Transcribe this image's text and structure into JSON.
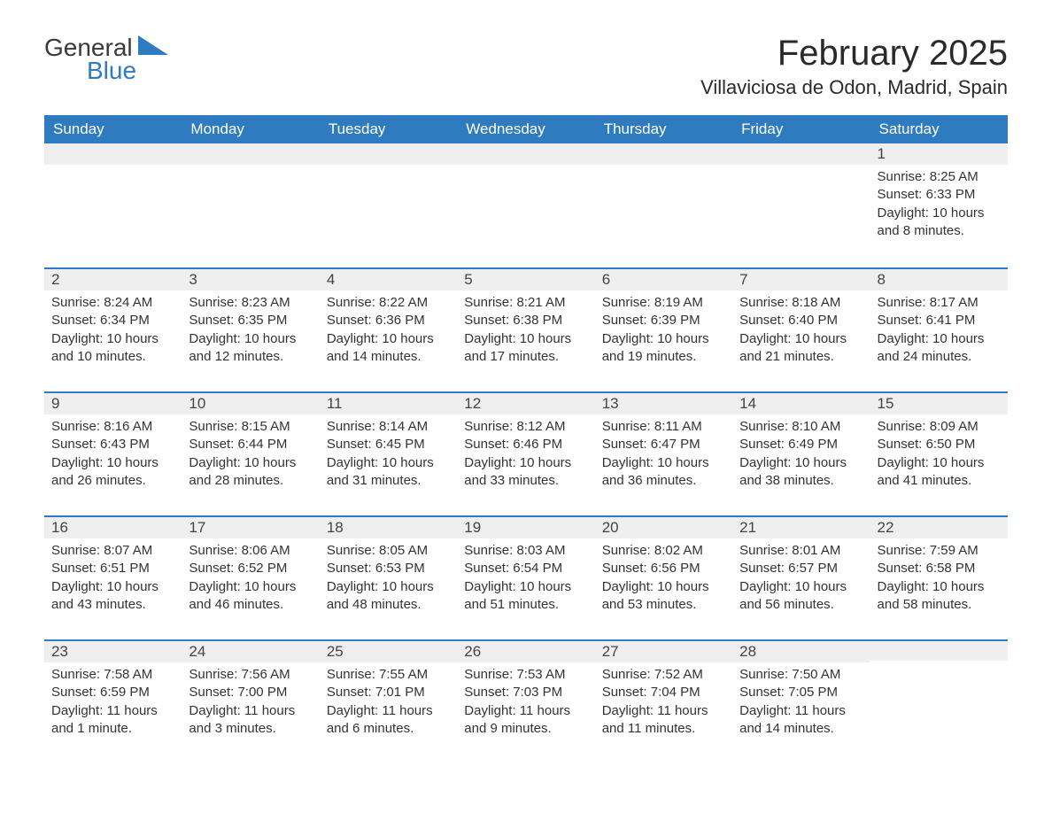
{
  "brand": {
    "general": "General",
    "blue": "Blue",
    "accent": "#2e7bbf"
  },
  "title": "February 2025",
  "location": "Villaviciosa de Odon, Madrid, Spain",
  "colors": {
    "header_bg": "#2e7bbf",
    "header_text": "#ffffff",
    "daynum_bg": "#efefef",
    "row_divider": "#2e7bbf",
    "text": "#333333",
    "background": "#ffffff"
  },
  "weekdays": [
    "Sunday",
    "Monday",
    "Tuesday",
    "Wednesday",
    "Thursday",
    "Friday",
    "Saturday"
  ],
  "weeks": [
    [
      null,
      null,
      null,
      null,
      null,
      null,
      {
        "n": "1",
        "sunrise": "8:25 AM",
        "sunset": "6:33 PM",
        "daylight": "10 hours and 8 minutes."
      }
    ],
    [
      {
        "n": "2",
        "sunrise": "8:24 AM",
        "sunset": "6:34 PM",
        "daylight": "10 hours and 10 minutes."
      },
      {
        "n": "3",
        "sunrise": "8:23 AM",
        "sunset": "6:35 PM",
        "daylight": "10 hours and 12 minutes."
      },
      {
        "n": "4",
        "sunrise": "8:22 AM",
        "sunset": "6:36 PM",
        "daylight": "10 hours and 14 minutes."
      },
      {
        "n": "5",
        "sunrise": "8:21 AM",
        "sunset": "6:38 PM",
        "daylight": "10 hours and 17 minutes."
      },
      {
        "n": "6",
        "sunrise": "8:19 AM",
        "sunset": "6:39 PM",
        "daylight": "10 hours and 19 minutes."
      },
      {
        "n": "7",
        "sunrise": "8:18 AM",
        "sunset": "6:40 PM",
        "daylight": "10 hours and 21 minutes."
      },
      {
        "n": "8",
        "sunrise": "8:17 AM",
        "sunset": "6:41 PM",
        "daylight": "10 hours and 24 minutes."
      }
    ],
    [
      {
        "n": "9",
        "sunrise": "8:16 AM",
        "sunset": "6:43 PM",
        "daylight": "10 hours and 26 minutes."
      },
      {
        "n": "10",
        "sunrise": "8:15 AM",
        "sunset": "6:44 PM",
        "daylight": "10 hours and 28 minutes."
      },
      {
        "n": "11",
        "sunrise": "8:14 AM",
        "sunset": "6:45 PM",
        "daylight": "10 hours and 31 minutes."
      },
      {
        "n": "12",
        "sunrise": "8:12 AM",
        "sunset": "6:46 PM",
        "daylight": "10 hours and 33 minutes."
      },
      {
        "n": "13",
        "sunrise": "8:11 AM",
        "sunset": "6:47 PM",
        "daylight": "10 hours and 36 minutes."
      },
      {
        "n": "14",
        "sunrise": "8:10 AM",
        "sunset": "6:49 PM",
        "daylight": "10 hours and 38 minutes."
      },
      {
        "n": "15",
        "sunrise": "8:09 AM",
        "sunset": "6:50 PM",
        "daylight": "10 hours and 41 minutes."
      }
    ],
    [
      {
        "n": "16",
        "sunrise": "8:07 AM",
        "sunset": "6:51 PM",
        "daylight": "10 hours and 43 minutes."
      },
      {
        "n": "17",
        "sunrise": "8:06 AM",
        "sunset": "6:52 PM",
        "daylight": "10 hours and 46 minutes."
      },
      {
        "n": "18",
        "sunrise": "8:05 AM",
        "sunset": "6:53 PM",
        "daylight": "10 hours and 48 minutes."
      },
      {
        "n": "19",
        "sunrise": "8:03 AM",
        "sunset": "6:54 PM",
        "daylight": "10 hours and 51 minutes."
      },
      {
        "n": "20",
        "sunrise": "8:02 AM",
        "sunset": "6:56 PM",
        "daylight": "10 hours and 53 minutes."
      },
      {
        "n": "21",
        "sunrise": "8:01 AM",
        "sunset": "6:57 PM",
        "daylight": "10 hours and 56 minutes."
      },
      {
        "n": "22",
        "sunrise": "7:59 AM",
        "sunset": "6:58 PM",
        "daylight": "10 hours and 58 minutes."
      }
    ],
    [
      {
        "n": "23",
        "sunrise": "7:58 AM",
        "sunset": "6:59 PM",
        "daylight": "11 hours and 1 minute."
      },
      {
        "n": "24",
        "sunrise": "7:56 AM",
        "sunset": "7:00 PM",
        "daylight": "11 hours and 3 minutes."
      },
      {
        "n": "25",
        "sunrise": "7:55 AM",
        "sunset": "7:01 PM",
        "daylight": "11 hours and 6 minutes."
      },
      {
        "n": "26",
        "sunrise": "7:53 AM",
        "sunset": "7:03 PM",
        "daylight": "11 hours and 9 minutes."
      },
      {
        "n": "27",
        "sunrise": "7:52 AM",
        "sunset": "7:04 PM",
        "daylight": "11 hours and 11 minutes."
      },
      {
        "n": "28",
        "sunrise": "7:50 AM",
        "sunset": "7:05 PM",
        "daylight": "11 hours and 14 minutes."
      },
      null
    ]
  ],
  "labels": {
    "sunrise": "Sunrise: ",
    "sunset": "Sunset: ",
    "daylight": "Daylight: "
  }
}
